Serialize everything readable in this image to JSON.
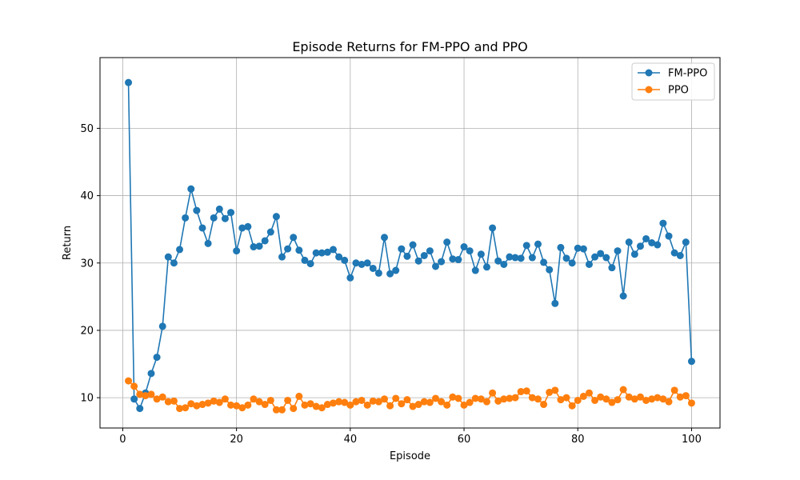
{
  "chart_data": {
    "type": "line",
    "title": "Episode Returns for FM-PPO and PPO",
    "xlabel": "Episode",
    "ylabel": "Return",
    "xlim": [
      -4,
      105
    ],
    "ylim": [
      5.5,
      60.5
    ],
    "xticks": [
      0,
      20,
      40,
      60,
      80,
      100
    ],
    "yticks": [
      10,
      20,
      30,
      40,
      50
    ],
    "grid": true,
    "legend_position": "top-right",
    "x": [
      1,
      2,
      3,
      4,
      5,
      6,
      7,
      8,
      9,
      10,
      11,
      12,
      13,
      14,
      15,
      16,
      17,
      18,
      19,
      20,
      21,
      22,
      23,
      24,
      25,
      26,
      27,
      28,
      29,
      30,
      31,
      32,
      33,
      34,
      35,
      36,
      37,
      38,
      39,
      40,
      41,
      42,
      43,
      44,
      45,
      46,
      47,
      48,
      49,
      50,
      51,
      52,
      53,
      54,
      55,
      56,
      57,
      58,
      59,
      60,
      61,
      62,
      63,
      64,
      65,
      66,
      67,
      68,
      69,
      70,
      71,
      72,
      73,
      74,
      75,
      76,
      77,
      78,
      79,
      80,
      81,
      82,
      83,
      84,
      85,
      86,
      87,
      88,
      89,
      90,
      91,
      92,
      93,
      94,
      95,
      96,
      97,
      98,
      99,
      100
    ],
    "series": [
      {
        "name": "FM-PPO",
        "color": "#1f77b4",
        "values": [
          56.8,
          9.8,
          8.4,
          10.7,
          13.6,
          16.0,
          20.6,
          30.9,
          30.0,
          32.0,
          36.7,
          41.0,
          37.8,
          35.2,
          32.9,
          36.7,
          38.0,
          36.6,
          37.5,
          31.8,
          35.2,
          35.4,
          32.4,
          32.5,
          33.3,
          34.6,
          36.9,
          30.9,
          32.1,
          33.8,
          31.9,
          30.4,
          29.9,
          31.5,
          31.5,
          31.6,
          32.0,
          30.9,
          30.4,
          27.8,
          30.0,
          29.8,
          30.0,
          29.2,
          28.5,
          33.8,
          28.4,
          28.9,
          32.1,
          31.0,
          32.7,
          30.3,
          31.1,
          31.8,
          29.5,
          30.2,
          33.1,
          30.6,
          30.5,
          32.4,
          31.8,
          28.9,
          31.3,
          29.4,
          35.2,
          30.3,
          29.8,
          30.9,
          30.8,
          30.7,
          32.6,
          30.8,
          32.8,
          30.1,
          29.0,
          24.0,
          32.3,
          30.7,
          30.0,
          32.2,
          32.1,
          29.8,
          30.9,
          31.4,
          30.8,
          29.3,
          31.8,
          25.1,
          33.1,
          31.3,
          32.5,
          33.6,
          33.0,
          32.7,
          35.9,
          34.0,
          31.5,
          31.1,
          33.1,
          15.4
        ]
      },
      {
        "name": "PPO",
        "color": "#ff7f0e",
        "values": [
          12.5,
          11.7,
          10.5,
          10.3,
          10.5,
          9.8,
          10.1,
          9.4,
          9.5,
          8.4,
          8.5,
          9.1,
          8.8,
          9.0,
          9.2,
          9.5,
          9.3,
          9.8,
          8.9,
          8.8,
          8.5,
          8.9,
          9.8,
          9.4,
          9.0,
          9.6,
          8.2,
          8.2,
          9.6,
          8.4,
          10.2,
          8.9,
          9.1,
          8.7,
          8.5,
          9.0,
          9.2,
          9.4,
          9.3,
          8.9,
          9.4,
          9.6,
          8.9,
          9.5,
          9.4,
          9.8,
          8.8,
          9.9,
          9.1,
          9.7,
          8.7,
          9.0,
          9.4,
          9.3,
          9.9,
          9.4,
          8.9,
          10.1,
          9.9,
          8.9,
          9.3,
          9.9,
          9.8,
          9.4,
          10.7,
          9.5,
          9.8,
          9.9,
          10.0,
          10.9,
          11.0,
          10.0,
          9.8,
          9.0,
          10.8,
          11.1,
          9.7,
          10.0,
          8.8,
          9.6,
          10.2,
          10.7,
          9.6,
          10.1,
          9.8,
          9.3,
          9.7,
          11.2,
          10.1,
          9.8,
          10.1,
          9.6,
          9.8,
          10.0,
          9.8,
          9.4,
          11.1,
          10.1,
          10.3,
          9.2
        ]
      }
    ]
  }
}
